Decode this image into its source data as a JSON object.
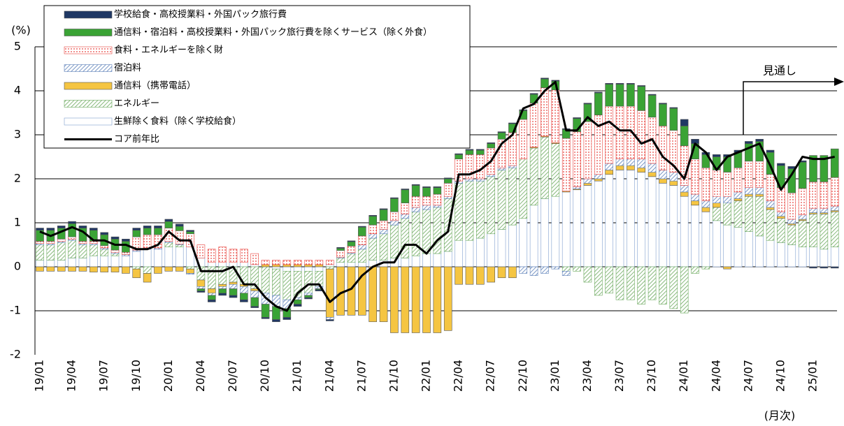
{
  "chart_data": {
    "type": "bar",
    "y_label": "(%)",
    "annotation": "見通し",
    "x_note": "(月次)",
    "categories": [
      "19/01",
      null,
      null,
      "19/04",
      null,
      null,
      "19/07",
      null,
      null,
      "19/10",
      null,
      null,
      "20/01",
      null,
      null,
      "20/04",
      null,
      null,
      "20/07",
      null,
      null,
      "20/10",
      null,
      null,
      "21/01",
      null,
      null,
      "21/04",
      null,
      null,
      "21/07",
      null,
      null,
      "21/10",
      null,
      null,
      "22/01",
      null,
      null,
      "22/04",
      null,
      null,
      "22/07",
      null,
      null,
      "22/10",
      null,
      null,
      "23/01",
      null,
      null,
      "23/04",
      null,
      null,
      "23/07",
      null,
      null,
      "23/10",
      null,
      null,
      "24/01",
      null,
      null,
      "24/04",
      null,
      null,
      "24/07",
      null,
      null,
      "24/10",
      null,
      null,
      "25/01",
      null,
      null
    ],
    "ylim": [
      -2,
      5
    ],
    "yticks": [
      -2,
      -1,
      0,
      1,
      2,
      3,
      4,
      5
    ],
    "grid": true,
    "legend": "upper-left",
    "series": [
      {
        "name": "学校給食・高校授業料・外国パック旅行費",
        "color": "#1f3864",
        "pattern": "solid",
        "values": [
          0.05,
          0.05,
          0.05,
          0.05,
          0.05,
          0.05,
          0.05,
          0.05,
          0.05,
          0.05,
          0.05,
          0.05,
          0.05,
          0.05,
          0.03,
          -0.03,
          -0.05,
          -0.05,
          -0.05,
          -0.05,
          -0.03,
          -0.03,
          -0.05,
          -0.05,
          -0.05,
          -0.03,
          -0.03,
          -0.03,
          0.02,
          0.02,
          0.02,
          0.02,
          0.02,
          0.02,
          0.02,
          0.02,
          0.02,
          0.02,
          0.02,
          0.02,
          0.02,
          0.02,
          0.02,
          0.02,
          0.02,
          0.02,
          0.02,
          0.02,
          0.02,
          0.02,
          0.02,
          0.02,
          0.02,
          0.02,
          0.02,
          0.02,
          0.02,
          0.02,
          0.02,
          0.02,
          0.15,
          0.1,
          0.05,
          0.05,
          0.05,
          0.05,
          0.05,
          0.05,
          0.05,
          0.05,
          0.05,
          0.03,
          -0.03,
          -0.03,
          -0.03
        ]
      },
      {
        "name": "通信料・宿泊料・高校授業料・外国パック旅行費を除くサービス（除く外食）",
        "color": "#3aa335",
        "pattern": "solid",
        "values": [
          0.25,
          0.25,
          0.25,
          0.3,
          0.3,
          0.25,
          0.25,
          0.25,
          0.25,
          0.15,
          0.15,
          0.15,
          0.15,
          0.1,
          0.05,
          -0.05,
          -0.1,
          -0.1,
          -0.15,
          -0.15,
          -0.2,
          -0.3,
          -0.3,
          -0.2,
          -0.1,
          -0.05,
          -0.02,
          0.0,
          0.05,
          0.1,
          0.2,
          0.2,
          0.25,
          0.3,
          0.3,
          0.25,
          0.2,
          0.15,
          0.1,
          0.1,
          0.1,
          0.1,
          0.1,
          0.15,
          0.2,
          0.2,
          0.2,
          0.2,
          0.2,
          0.2,
          0.3,
          0.4,
          0.5,
          0.5,
          0.5,
          0.5,
          0.55,
          0.5,
          0.5,
          0.5,
          0.45,
          0.35,
          0.3,
          0.3,
          0.35,
          0.35,
          0.4,
          0.45,
          0.5,
          0.5,
          0.55,
          0.6,
          0.6,
          0.6,
          0.65
        ]
      },
      {
        "name": "食料・エネルギーを除く財",
        "color": "#e8423c",
        "pattern": "dots",
        "values": [
          0.05,
          0.05,
          0.05,
          0.05,
          0.05,
          0.05,
          0.05,
          0.05,
          0.05,
          0.3,
          0.3,
          0.3,
          0.3,
          0.3,
          0.3,
          0.3,
          0.3,
          0.35,
          0.3,
          0.3,
          0.25,
          0.1,
          0.1,
          0.1,
          0.1,
          0.1,
          0.1,
          0.1,
          0.15,
          0.15,
          0.2,
          0.2,
          0.2,
          0.2,
          0.25,
          0.25,
          0.2,
          0.25,
          0.3,
          0.5,
          0.55,
          0.55,
          0.6,
          0.65,
          0.75,
          0.9,
          1.0,
          1.1,
          1.2,
          1.2,
          1.25,
          1.3,
          1.35,
          1.3,
          1.2,
          1.2,
          1.1,
          1.05,
          1.0,
          0.95,
          0.9,
          0.8,
          0.75,
          0.6,
          0.55,
          0.55,
          0.6,
          0.6,
          0.6,
          0.55,
          0.6,
          0.6,
          0.6,
          0.6,
          0.65
        ]
      },
      {
        "name": "宿泊料",
        "color": "#5b7fb8",
        "pattern": "hatch",
        "values": [
          0.03,
          0.03,
          0.03,
          0.03,
          0.03,
          0.03,
          0.03,
          0.03,
          0.03,
          0.03,
          0.03,
          0.03,
          0.03,
          0.02,
          -0.02,
          -0.05,
          -0.05,
          -0.05,
          -0.1,
          -0.15,
          -0.15,
          -0.25,
          -0.25,
          -0.2,
          -0.05,
          -0.05,
          -0.05,
          -0.05,
          0.02,
          0.02,
          0.1,
          0.1,
          0.1,
          0.1,
          0.1,
          0.1,
          0.1,
          0.05,
          0.05,
          0.05,
          0.05,
          0.05,
          0.05,
          0.05,
          0.05,
          -0.15,
          -0.2,
          -0.15,
          -0.05,
          -0.1,
          0.05,
          0.1,
          0.1,
          0.15,
          0.15,
          0.15,
          0.2,
          0.2,
          0.2,
          0.2,
          0.15,
          0.15,
          0.15,
          0.15,
          0.15,
          0.15,
          0.15,
          0.15,
          0.15,
          0.1,
          0.1,
          0.1,
          0.1,
          0.1,
          0.1
        ]
      },
      {
        "name": "通信料（携帯電話）",
        "color": "#f5c542",
        "pattern": "solid",
        "values": [
          -0.1,
          -0.1,
          -0.1,
          -0.1,
          -0.1,
          -0.12,
          -0.12,
          -0.12,
          -0.15,
          -0.2,
          -0.2,
          -0.15,
          -0.1,
          -0.1,
          -0.1,
          -0.15,
          -0.1,
          -0.05,
          -0.05,
          -0.05,
          -0.05,
          0.05,
          0.05,
          0.05,
          0.05,
          0.05,
          0.05,
          -1.1,
          -1.1,
          -1.1,
          -1.1,
          -1.25,
          -1.25,
          -1.5,
          -1.5,
          -1.5,
          -1.5,
          -1.5,
          -1.45,
          -0.4,
          -0.4,
          -0.4,
          -0.35,
          -0.25,
          -0.25,
          0.0,
          0.02,
          0.02,
          0.02,
          0.02,
          0.02,
          0.05,
          0.05,
          0.1,
          0.1,
          0.1,
          0.1,
          0.1,
          0.1,
          0.1,
          0.1,
          0.1,
          0.1,
          0.1,
          -0.05,
          0.05,
          0.05,
          0.05,
          0.05,
          0.05,
          0.03,
          0.03,
          0.03,
          0.03,
          0.03
        ]
      },
      {
        "name": "エネルギー",
        "color": "#6aa85c",
        "pattern": "hatch",
        "values": [
          0.35,
          0.35,
          0.4,
          0.4,
          0.3,
          0.25,
          0.15,
          0.05,
          0.0,
          -0.05,
          -0.15,
          0.0,
          0.1,
          0.05,
          -0.05,
          -0.3,
          -0.5,
          -0.4,
          -0.35,
          -0.4,
          -0.5,
          -0.6,
          -0.6,
          -0.65,
          -0.6,
          -0.5,
          -0.35,
          -0.05,
          0.1,
          0.2,
          0.3,
          0.5,
          0.6,
          0.75,
          0.9,
          1.0,
          1.0,
          1.05,
          1.2,
          1.3,
          1.35,
          1.3,
          1.3,
          1.35,
          1.3,
          1.35,
          1.3,
          1.4,
          1.2,
          -0.1,
          -0.1,
          -0.35,
          -0.65,
          -0.6,
          -0.75,
          -0.75,
          -0.85,
          -0.75,
          -0.85,
          -0.95,
          -1.05,
          -0.15,
          -0.05,
          0.3,
          0.5,
          0.6,
          0.8,
          0.9,
          0.7,
          0.55,
          0.45,
          0.6,
          0.75,
          0.8,
          0.8
        ]
      },
      {
        "name": "生鮮除く食料（除く学校給食）",
        "color": "#7f9fcf",
        "pattern": "outline",
        "values": [
          0.15,
          0.15,
          0.15,
          0.2,
          0.2,
          0.25,
          0.25,
          0.25,
          0.25,
          0.35,
          0.4,
          0.4,
          0.45,
          0.45,
          0.45,
          0.2,
          0.1,
          0.1,
          0.1,
          0.1,
          0.05,
          0.0,
          -0.05,
          -0.1,
          -0.1,
          -0.1,
          -0.1,
          0.05,
          0.1,
          0.1,
          0.1,
          0.15,
          0.15,
          0.2,
          0.2,
          0.25,
          0.3,
          0.3,
          0.35,
          0.6,
          0.6,
          0.65,
          0.75,
          0.85,
          0.95,
          1.1,
          1.4,
          1.55,
          1.6,
          1.7,
          1.75,
          1.85,
          1.95,
          2.1,
          2.2,
          2.2,
          2.15,
          2.05,
          1.9,
          1.85,
          1.6,
          1.4,
          1.25,
          1.05,
          0.95,
          0.9,
          0.8,
          0.7,
          0.6,
          0.55,
          0.5,
          0.45,
          0.45,
          0.4,
          0.45
        ]
      },
      {
        "name": "コア前年比",
        "color": "#000000",
        "type": "line",
        "values": [
          0.8,
          0.7,
          0.8,
          0.9,
          0.8,
          0.6,
          0.6,
          0.5,
          0.5,
          0.4,
          0.4,
          0.5,
          0.8,
          0.6,
          0.6,
          -0.1,
          -0.1,
          -0.1,
          0.0,
          -0.4,
          -0.4,
          -0.7,
          -0.9,
          -1.0,
          -0.6,
          -0.4,
          -0.4,
          -0.8,
          -0.6,
          -0.5,
          -0.2,
          0.0,
          0.1,
          0.1,
          0.5,
          0.5,
          0.3,
          0.6,
          0.8,
          2.1,
          2.1,
          2.2,
          2.4,
          2.8,
          3.0,
          3.6,
          3.7,
          4.0,
          4.2,
          3.1,
          3.1,
          3.4,
          3.2,
          3.3,
          3.1,
          3.1,
          2.8,
          2.9,
          2.5,
          2.3,
          2.0,
          2.8,
          2.6,
          2.2,
          2.5,
          2.6,
          2.7,
          2.8,
          2.3,
          1.75,
          2.1,
          2.5,
          2.45,
          2.45,
          2.5
        ]
      }
    ]
  }
}
